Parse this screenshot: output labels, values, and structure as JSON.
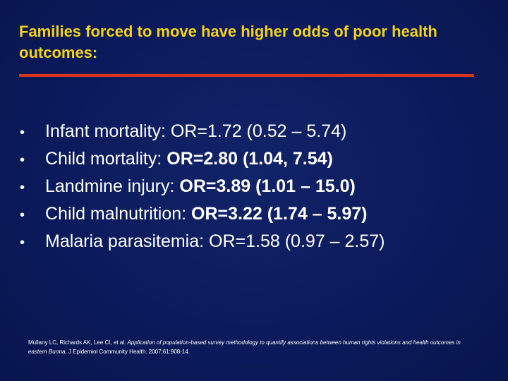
{
  "slide": {
    "title": "Families forced to move have higher odds of poor health outcomes:",
    "bullet_symbol": "•",
    "bullets": [
      {
        "label": "Infant mortality: ",
        "value": "OR=1.72 (0.52 – 5.74)",
        "value_bold": false
      },
      {
        "label": "Child mortality: ",
        "value": "OR=2.80 (1.04, 7.54)",
        "value_bold": true
      },
      {
        "label": "Landmine injury: ",
        "value": "OR=3.89 (1.01 – 15.0)",
        "value_bold": true
      },
      {
        "label": "Child malnutrition: ",
        "value": "OR=3.22 (1.74 – 5.97)",
        "value_bold": true
      },
      {
        "label": "Malaria parasitemia: ",
        "value": "OR=1.58 (0.97 – 2.57)",
        "value_bold": false
      }
    ],
    "citation": {
      "authors": "Mullany LC, Richards AK, Lee CI, et al. ",
      "article_title": "Application of population-based survey methodology to quantify associations between human rights violations and health outcomes in eastern Burma.",
      "journal": " J Epidemiol Community Health. 2007;61:908-14."
    }
  },
  "colors": {
    "background": "#0b1a5c",
    "title": "#f5d31a",
    "rule": "#d8361c",
    "text": "#ffffff"
  }
}
